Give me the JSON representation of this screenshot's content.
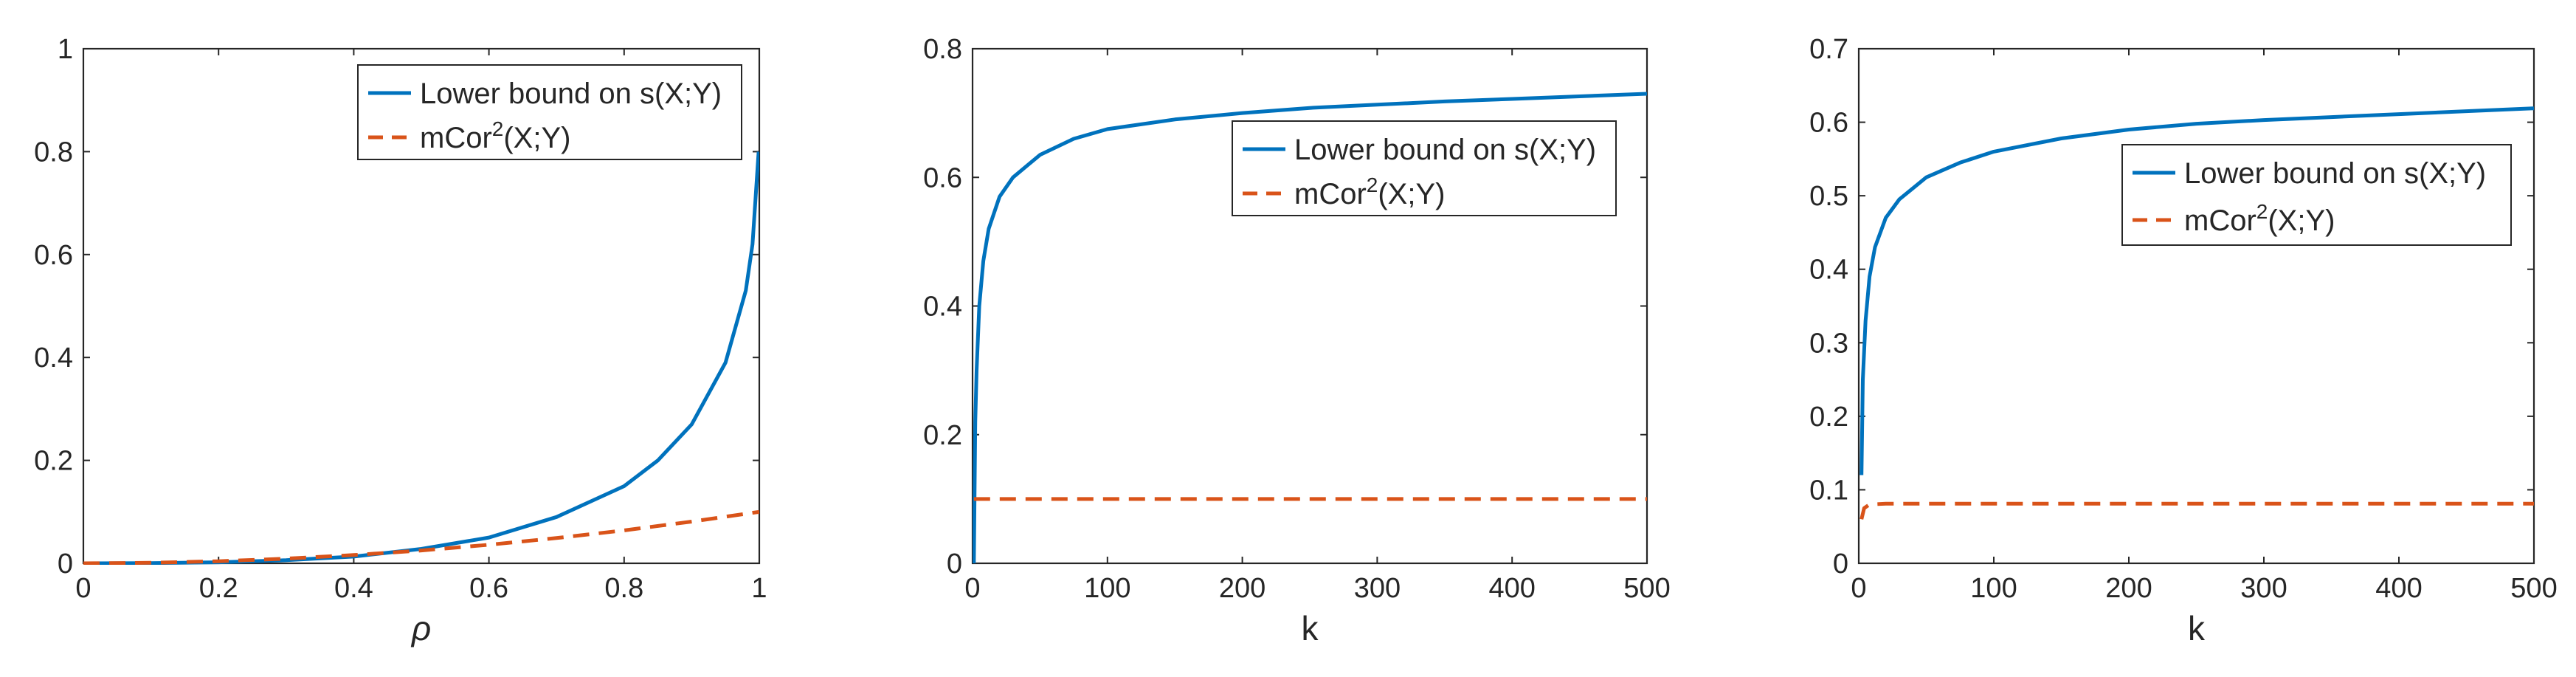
{
  "chart_data": [
    {
      "type": "line",
      "xlabel": "ρ",
      "ylabel": "",
      "xlim": [
        0,
        1
      ],
      "ylim": [
        0,
        1
      ],
      "xticks": [
        0,
        0.2,
        0.4,
        0.6,
        0.8,
        1
      ],
      "xtick_labels": [
        "0",
        "0.2",
        "0.4",
        "0.6",
        "0.8",
        "1"
      ],
      "yticks": [
        0,
        0.2,
        0.4,
        0.6,
        0.8,
        1
      ],
      "ytick_labels": [
        "0",
        "0.2",
        "0.4",
        "0.6",
        "0.8",
        "1"
      ],
      "legend_location": "top-right",
      "series": [
        {
          "name": "Lower bound on s(X;Y)",
          "legend_label": "Lower bound on s(X;Y)",
          "color": "#0072BD",
          "dash": "solid",
          "x": [
            0,
            0.1,
            0.2,
            0.3,
            0.4,
            0.5,
            0.6,
            0.7,
            0.8,
            0.85,
            0.9,
            0.95,
            0.98,
            0.99,
            0.999
          ],
          "y": [
            0,
            0.0005,
            0.002,
            0.006,
            0.013,
            0.028,
            0.05,
            0.09,
            0.15,
            0.2,
            0.27,
            0.39,
            0.53,
            0.62,
            0.8
          ]
        },
        {
          "name": "mCor2(X;Y)",
          "legend_label": "mCor",
          "legend_sup": "2",
          "legend_suffix": "(X;Y)",
          "color": "#D95319",
          "dash": "dashed",
          "x": [
            0,
            0.1,
            0.2,
            0.3,
            0.4,
            0.5,
            0.6,
            0.7,
            0.8,
            0.9,
            1
          ],
          "y": [
            0,
            0.001,
            0.004,
            0.009,
            0.016,
            0.025,
            0.036,
            0.049,
            0.064,
            0.081,
            0.1
          ]
        }
      ]
    },
    {
      "type": "line",
      "xlabel": "k",
      "ylabel": "",
      "xlim": [
        0,
        500
      ],
      "ylim": [
        0,
        0.8
      ],
      "xticks": [
        0,
        100,
        200,
        300,
        400,
        500
      ],
      "xtick_labels": [
        "0",
        "100",
        "200",
        "300",
        "400",
        "500"
      ],
      "yticks": [
        0,
        0.2,
        0.4,
        0.6,
        0.8
      ],
      "ytick_labels": [
        "0",
        "0.2",
        "0.4",
        "0.6",
        "0.8"
      ],
      "legend_location": "right",
      "series": [
        {
          "name": "Lower bound on s(X;Y)",
          "legend_label": "Lower bound on s(X;Y)",
          "color": "#0072BD",
          "dash": "solid",
          "x": [
            1,
            2,
            3,
            5,
            8,
            12,
            20,
            30,
            50,
            75,
            100,
            150,
            200,
            250,
            300,
            350,
            400,
            450,
            500
          ],
          "y": [
            0.0,
            0.22,
            0.3,
            0.4,
            0.47,
            0.52,
            0.57,
            0.6,
            0.635,
            0.66,
            0.675,
            0.69,
            0.7,
            0.708,
            0.713,
            0.718,
            0.722,
            0.726,
            0.73
          ]
        },
        {
          "name": "mCor2(X;Y)",
          "legend_label": "mCor",
          "legend_sup": "2",
          "legend_suffix": "(X;Y)",
          "color": "#D95319",
          "dash": "dashed",
          "x": [
            1,
            500
          ],
          "y": [
            0.1,
            0.1
          ]
        }
      ]
    },
    {
      "type": "line",
      "xlabel": "k",
      "ylabel": "",
      "xlim": [
        0,
        500
      ],
      "ylim": [
        0,
        0.7
      ],
      "xticks": [
        0,
        100,
        200,
        300,
        400,
        500
      ],
      "xtick_labels": [
        "0",
        "100",
        "200",
        "300",
        "400",
        "500"
      ],
      "yticks": [
        0,
        0.1,
        0.2,
        0.3,
        0.4,
        0.5,
        0.6,
        0.7
      ],
      "ytick_labels": [
        "0",
        "0.1",
        "0.2",
        "0.3",
        "0.4",
        "0.5",
        "0.6",
        "0.7"
      ],
      "legend_location": "right",
      "series": [
        {
          "name": "Lower bound on s(X;Y)",
          "legend_label": "Lower bound on s(X;Y)",
          "color": "#0072BD",
          "dash": "solid",
          "x": [
            2,
            3,
            5,
            8,
            12,
            20,
            30,
            50,
            75,
            100,
            150,
            200,
            250,
            300,
            350,
            400,
            450,
            500
          ],
          "y": [
            0.12,
            0.25,
            0.33,
            0.39,
            0.43,
            0.47,
            0.495,
            0.525,
            0.545,
            0.56,
            0.578,
            0.59,
            0.598,
            0.603,
            0.607,
            0.611,
            0.615,
            0.619
          ]
        },
        {
          "name": "mCor2(X;Y)",
          "legend_label": "mCor",
          "legend_sup": "2",
          "legend_suffix": "(X;Y)",
          "color": "#D95319",
          "dash": "dashed",
          "x": [
            2,
            4,
            8,
            20,
            500
          ],
          "y": [
            0.06,
            0.075,
            0.08,
            0.081,
            0.081
          ]
        }
      ]
    }
  ]
}
